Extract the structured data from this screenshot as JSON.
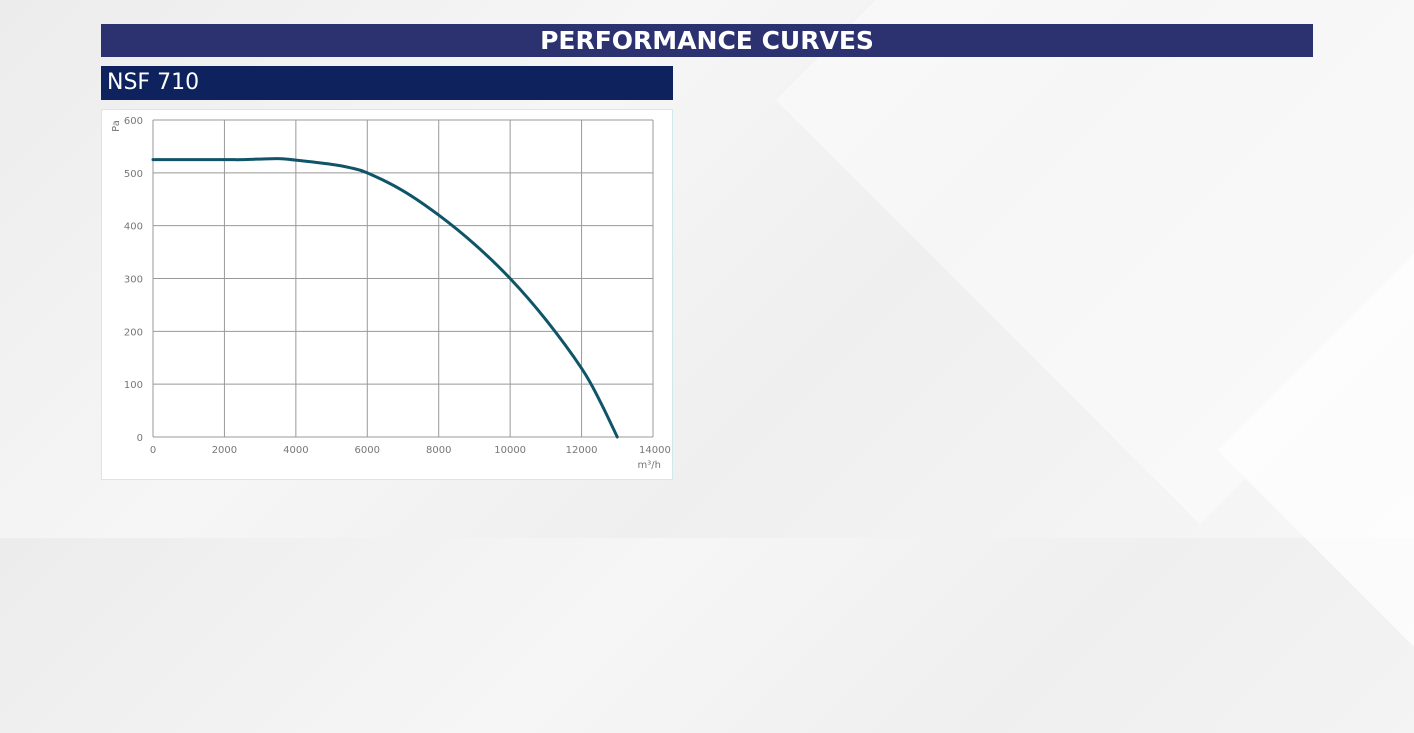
{
  "header": {
    "title": "PERFORMANCE CURVES"
  },
  "model": {
    "name": "NSF 710"
  },
  "chart_data": {
    "type": "line",
    "title": "",
    "xlabel": "m³/h",
    "ylabel": "Pa",
    "xlim": [
      0,
      14000
    ],
    "ylim": [
      0,
      600
    ],
    "xticks": [
      0,
      2000,
      4000,
      6000,
      8000,
      10000,
      12000,
      14000
    ],
    "yticks": [
      0,
      100,
      200,
      300,
      400,
      500,
      600
    ],
    "grid": true,
    "series": [
      {
        "name": "NSF 710",
        "color": "#0f5468",
        "x": [
          0,
          2000,
          2500,
          3500,
          4000,
          5000,
          5500,
          6000,
          7000,
          8000,
          9000,
          10000,
          11000,
          12000,
          12500,
          13000
        ],
        "y": [
          525,
          525,
          525,
          527,
          524,
          516,
          510,
          500,
          466,
          420,
          365,
          300,
          222,
          130,
          70,
          0
        ]
      }
    ]
  }
}
